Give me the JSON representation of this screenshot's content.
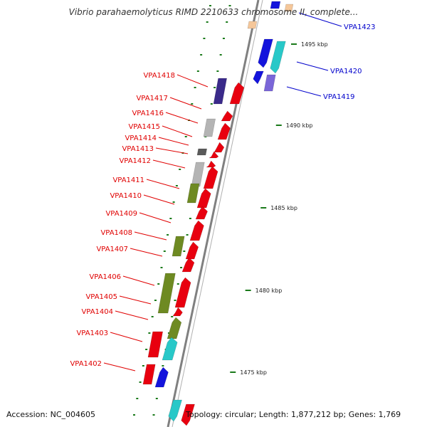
{
  "title": "Vibrio parahaemolyticus RIMD 2210633 chromosome II, complete...",
  "accession": "Accession: NC_004605",
  "topology": "Topology: circular; Length: 1,877,212 bp; Genes: 1,769",
  "colors": {
    "red": "#e8000f",
    "navy": "#3a2a8a",
    "blue": "#1414dc",
    "cyan": "#28c8c8",
    "olive": "#6e8a22",
    "grey": "#b4b4b4",
    "darkgrey": "#5a5a5a",
    "lilac": "#7a66d8",
    "peach": "#f5c79a",
    "tick": "#1a7a1a",
    "label_red": "#e00000",
    "label_blue": "#0000cc",
    "backbone": "#808080"
  },
  "kbp_marks": [
    "1495 kbp",
    "1490 kbp",
    "1485 kbp",
    "1480 kbp",
    "1475 kbp"
  ],
  "left_labels": [
    "VPA1418",
    "VPA1417",
    "VPA1416",
    "VPA1415",
    "VPA1414",
    "VPA1413",
    "VPA1412",
    "VPA1411",
    "VPA1410",
    "VPA1409",
    "VPA1408",
    "VPA1407",
    "VPA1406",
    "VPA1405",
    "VPA1404",
    "VPA1403",
    "VPA1402"
  ],
  "right_labels": [
    "VPA1423",
    "VPA1420",
    "VPA1419"
  ],
  "genes": [
    {
      "tag": "VPA1423",
      "strand": "+",
      "color": "blue"
    },
    {
      "tag": "VPA1420",
      "strand": "+",
      "color": "blue"
    },
    {
      "tag": "VPA1420-b",
      "strand": "+",
      "color": "cyan"
    },
    {
      "tag": "VPA1419",
      "strand": "+",
      "color": "blue"
    },
    {
      "tag": "VPA1419-b",
      "strand": "+",
      "color": "lilac"
    },
    {
      "tag": "VPA1418",
      "strand": "-",
      "color": "navy"
    },
    {
      "tag": "VPA1418-b",
      "strand": "-",
      "color": "red"
    },
    {
      "tag": "VPA1416",
      "strand": "-",
      "color": "red"
    },
    {
      "tag": "VPA1415",
      "strand": "-",
      "color": "grey"
    },
    {
      "tag": "VPA1415-b",
      "strand": "-",
      "color": "red"
    },
    {
      "tag": "VPA1414",
      "strand": "-",
      "color": "red"
    },
    {
      "tag": "VPA1413",
      "strand": "-",
      "color": "darkgrey"
    },
    {
      "tag": "VPA1413-b",
      "strand": "-",
      "color": "red"
    },
    {
      "tag": "VPA1412",
      "strand": "-",
      "color": "red"
    },
    {
      "tag": "VPA1411",
      "strand": "-",
      "color": "grey"
    },
    {
      "tag": "VPA1411-b",
      "strand": "-",
      "color": "red"
    },
    {
      "tag": "VPA1410",
      "strand": "-",
      "color": "olive"
    },
    {
      "tag": "VPA1410-b",
      "strand": "-",
      "color": "red"
    },
    {
      "tag": "VPA1409",
      "strand": "-",
      "color": "red"
    },
    {
      "tag": "VPA1408",
      "strand": "-",
      "color": "red"
    },
    {
      "tag": "VPA1407",
      "strand": "-",
      "color": "olive"
    },
    {
      "tag": "VPA1407-b",
      "strand": "-",
      "color": "red"
    },
    {
      "tag": "VPA1406",
      "strand": "-",
      "color": "red"
    },
    {
      "tag": "VPA1405",
      "strand": "-",
      "color": "olive"
    },
    {
      "tag": "VPA1405-b",
      "strand": "-",
      "color": "red"
    },
    {
      "tag": "VPA1404",
      "strand": "-",
      "color": "red"
    },
    {
      "tag": "VPA1403",
      "strand": "-",
      "color": "olive"
    },
    {
      "tag": "VPA1403-b",
      "strand": "-",
      "color": "red"
    },
    {
      "tag": "VPA1402",
      "strand": "-",
      "color": "cyan"
    },
    {
      "tag": "VPA1402-b",
      "strand": "-",
      "color": "red"
    },
    {
      "tag": "VPA1401",
      "strand": "+",
      "color": "blue"
    },
    {
      "tag": "VPA1401-b",
      "strand": "+",
      "color": "cyan"
    },
    {
      "tag": "VPA1424",
      "strand": "-",
      "color": "red"
    },
    {
      "tag": "VPA1424-b",
      "strand": "+",
      "color": "peach"
    }
  ]
}
